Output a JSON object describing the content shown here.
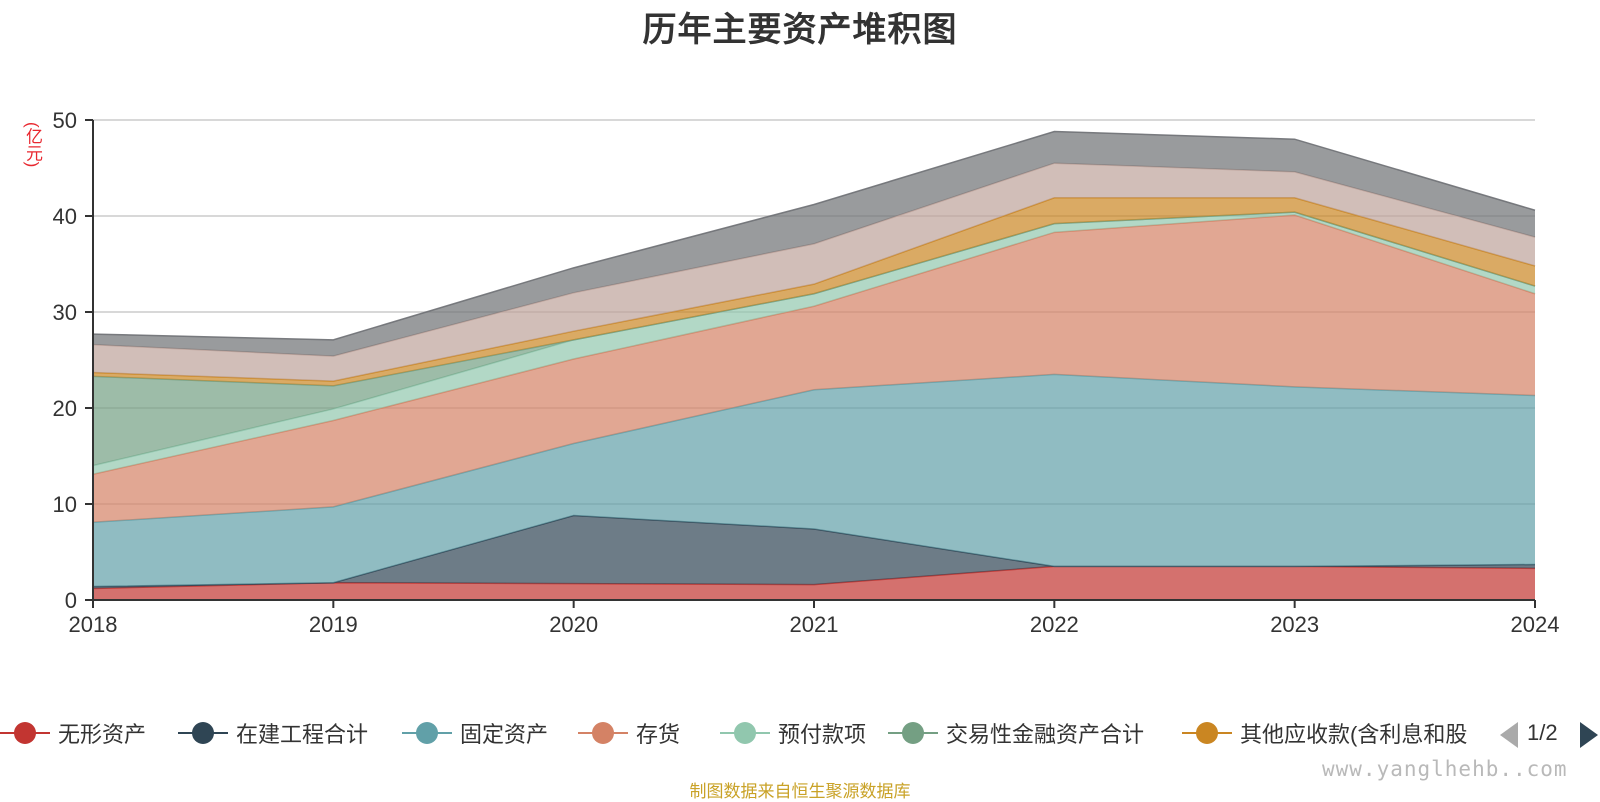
{
  "title": "历年主要资产堆积图",
  "y_unit": "(亿元)",
  "source_note": "制图数据来自恒生聚源数据库",
  "watermark": "www.yanglhehb..com",
  "pager": {
    "text": "1/2"
  },
  "colors": {
    "无形资产": "#c23531",
    "在建工程合计": "#2f4554",
    "固定资产": "#61a0a8",
    "存货": "#d48265",
    "预付款项": "#91c7ae",
    "交易性金融资产合计": "#749f83",
    "其他应收款(含利息和股利)": "#ca8622",
    "series_8": "#bda29a",
    "series_9": "#6e7074"
  },
  "chart_data": {
    "type": "area",
    "stacked": true,
    "x": [
      "2018",
      "2019",
      "2020",
      "2021",
      "2022",
      "2023",
      "2024"
    ],
    "ylim": [
      0,
      50
    ],
    "yticks": [
      0,
      10,
      20,
      30,
      40,
      50
    ],
    "grid": true,
    "legend_position": "bottom",
    "series": [
      {
        "name": "无形资产",
        "values": [
          1.2,
          1.8,
          1.7,
          1.6,
          3.5,
          3.5,
          3.3
        ]
      },
      {
        "name": "在建工程合计",
        "values": [
          0.2,
          0.0,
          7.1,
          5.8,
          0.0,
          0.0,
          0.4
        ]
      },
      {
        "name": "固定资产",
        "values": [
          6.7,
          7.9,
          7.5,
          14.5,
          20.0,
          18.7,
          17.6
        ]
      },
      {
        "name": "存货",
        "values": [
          5.0,
          9.0,
          8.8,
          8.7,
          14.8,
          17.9,
          10.6
        ]
      },
      {
        "name": "预付款项",
        "values": [
          0.9,
          1.2,
          2.0,
          1.3,
          0.9,
          0.3,
          0.8
        ]
      },
      {
        "name": "交易性金融资产合计",
        "values": [
          9.3,
          2.4,
          0.0,
          0.0,
          0.0,
          0.0,
          0.0
        ]
      },
      {
        "name": "其他应收款(含利息和股利)",
        "values": [
          0.4,
          0.5,
          0.9,
          1.0,
          2.7,
          1.5,
          2.1
        ]
      },
      {
        "values": [
          2.9,
          2.6,
          4.0,
          4.2,
          3.6,
          2.7,
          3.0
        ]
      },
      {
        "values": [
          1.1,
          1.7,
          2.6,
          4.1,
          3.3,
          3.4,
          2.8
        ]
      }
    ]
  },
  "legend": {
    "items": [
      {
        "label": "无形资产"
      },
      {
        "label": "在建工程合计"
      },
      {
        "label": "固定资产"
      },
      {
        "label": "存货"
      },
      {
        "label": "预付款项"
      },
      {
        "label": "交易性金融资产合计"
      },
      {
        "label": "其他应收款(含利息和股"
      }
    ]
  }
}
